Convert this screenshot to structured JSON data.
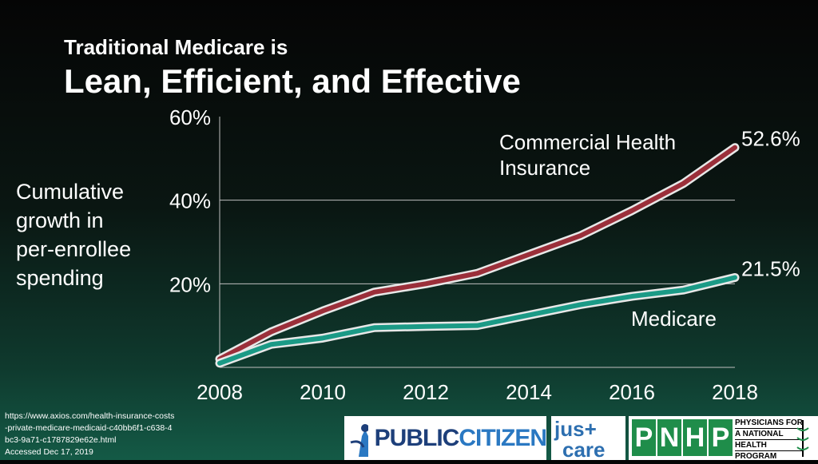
{
  "header": {
    "subtitle": "Traditional Medicare is",
    "title": "Lean, Efficient, and Effective"
  },
  "y_axis_label_lines": [
    "Cumulative",
    "growth in",
    "per-enrollee",
    "spending"
  ],
  "source": {
    "url": "https://www.axios.com/health-insurance-costs-private-medicare-medicaid-c40bb6f1-c638-4bc3-9a71-c1787829e62e.html",
    "accessed": "Accessed Dec 17, 2019"
  },
  "logos": {
    "public_citizen": [
      "PUBLIC",
      "CITIZEN"
    ],
    "just_care": [
      "jus+",
      "care"
    ],
    "pnhp": {
      "letters": [
        "P",
        "N",
        "H",
        "P"
      ],
      "lines": [
        "PHYSICIANS FOR",
        "A NATIONAL",
        "HEALTH",
        "PROGRAM"
      ]
    }
  },
  "colors": {
    "commercial": "#9b2f3a",
    "medicare": "#1b9a86",
    "outline": "#e8e8e8",
    "grid": "#bfbfbf"
  },
  "chart_data": {
    "type": "line",
    "x": [
      2008,
      2009,
      2010,
      2011,
      2012,
      2013,
      2014,
      2015,
      2016,
      2017,
      2018
    ],
    "ylim": [
      0,
      60
    ],
    "yticks": [
      "20%",
      "40%",
      "60%"
    ],
    "yticks_values": [
      20,
      40,
      60
    ],
    "xticks": [
      "2008",
      "2010",
      "2012",
      "2014",
      "2016",
      "2018"
    ],
    "xticks_values": [
      2008,
      2010,
      2012,
      2014,
      2016,
      2018
    ],
    "series": [
      {
        "name": "Commercial Health Insurance",
        "label_lines": [
          "Commercial Health",
          "Insurance"
        ],
        "values": [
          2,
          8.5,
          13.5,
          18,
          20,
          22.5,
          27,
          31.5,
          37.5,
          44,
          52.6
        ],
        "end_label": "52.6%"
      },
      {
        "name": "Medicare",
        "label_lines": [
          "Medicare"
        ],
        "values": [
          1,
          5.5,
          7,
          9.5,
          9.8,
          10,
          12.5,
          15,
          17,
          18.5,
          21.5
        ],
        "end_label": "21.5%"
      }
    ]
  }
}
